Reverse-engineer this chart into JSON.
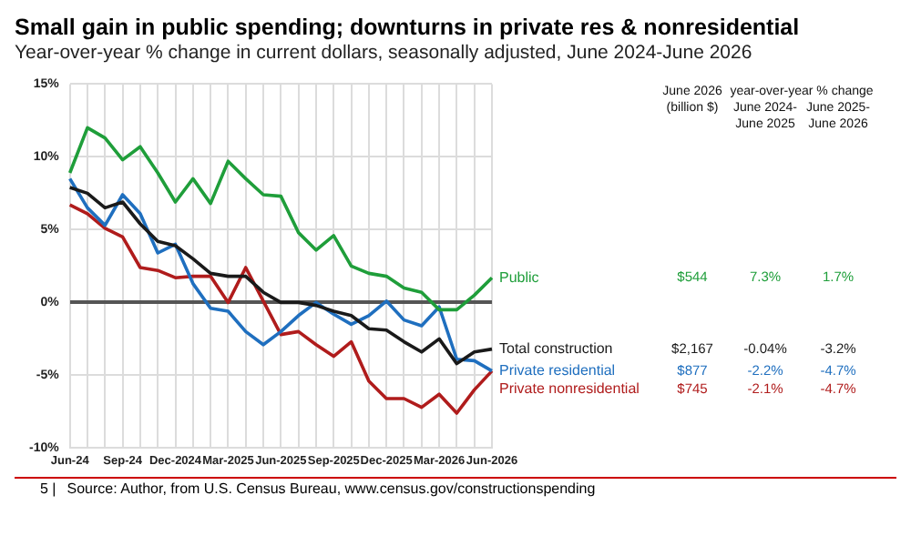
{
  "chart_data": {
    "type": "line",
    "title": "Small gain in public spending; downturns in private res & nonresidential",
    "subtitle": "Year-over-year % change in current dollars, seasonally adjusted, June 2024-June 2026",
    "categories": [
      "Jun-24",
      null,
      null,
      "Sep-24",
      null,
      null,
      "Dec-2024",
      null,
      null,
      "Mar-2025",
      null,
      null,
      "Jun-2025",
      null,
      null,
      "Sep-2025",
      null,
      null,
      "Dec-2025",
      null,
      null,
      "Mar-2026",
      null,
      null,
      "Jun-2026"
    ],
    "series": [
      {
        "name": "Public",
        "color": "#1f9e3a",
        "values": [
          8.9,
          12.0,
          11.3,
          9.8,
          10.7,
          8.9,
          6.9,
          8.5,
          6.8,
          9.7,
          8.5,
          7.4,
          7.3,
          4.8,
          3.6,
          4.6,
          2.5,
          2.0,
          1.8,
          1.0,
          0.7,
          -0.5,
          -0.5,
          0.5,
          1.7
        ]
      },
      {
        "name": "Total construction",
        "color": "#1a1a1a",
        "values": [
          7.9,
          7.5,
          6.5,
          6.9,
          5.4,
          4.2,
          3.9,
          3.0,
          2.0,
          1.8,
          1.8,
          0.7,
          0,
          0,
          -0.2,
          -0.6,
          -0.9,
          -1.8,
          -1.9,
          -2.7,
          -3.4,
          -2.5,
          -4.2,
          -3.4,
          -3.2
        ]
      },
      {
        "name": "Private residential",
        "color": "#1f6fbf",
        "values": [
          8.5,
          6.5,
          5.3,
          7.4,
          6.1,
          3.4,
          4.0,
          1.3,
          -0.4,
          -0.6,
          -2.0,
          -2.9,
          -2.0,
          -0.9,
          0,
          -0.8,
          -1.5,
          -0.9,
          0.1,
          -1.2,
          -1.6,
          -0.3,
          -3.9,
          -4.0,
          -4.7
        ]
      },
      {
        "name": "Private nonresidential",
        "color": "#b01c1c",
        "values": [
          6.7,
          6.1,
          5.1,
          4.5,
          2.4,
          2.2,
          1.7,
          1.8,
          1.8,
          0,
          2.4,
          0.1,
          -2.2,
          -2.0,
          -2.9,
          -3.7,
          -2.7,
          -5.4,
          -6.6,
          -6.6,
          -7.2,
          -6.3,
          -7.6,
          -6.0,
          -4.7
        ]
      }
    ],
    "ylim": [
      -10,
      15
    ],
    "yticks": [
      {
        "value": -10,
        "label": "-10%"
      },
      {
        "value": -5,
        "label": "-5%"
      },
      {
        "value": 0,
        "label": "0%"
      },
      {
        "value": 5,
        "label": "5%"
      },
      {
        "value": 10,
        "label": "10%"
      },
      {
        "value": 15,
        "label": "15%"
      }
    ],
    "grid": true,
    "legend": "right",
    "marker": "none",
    "annotations": [
      "June 2026",
      "(billion $)",
      "year-over-year % change",
      "June 2024-",
      "June 2025",
      "June 2025-",
      "June 2026",
      "$544",
      "7.3%",
      "1.7%",
      "$2,167",
      "-0.04%",
      "-3.2%",
      "$877",
      "-2.2%",
      "-4.7%",
      "$745",
      "-2.1%",
      "-4.7%",
      "5 |",
      "Source: Author, from U.S. Census Bureau, www.census.gov/constructionspending"
    ]
  }
}
